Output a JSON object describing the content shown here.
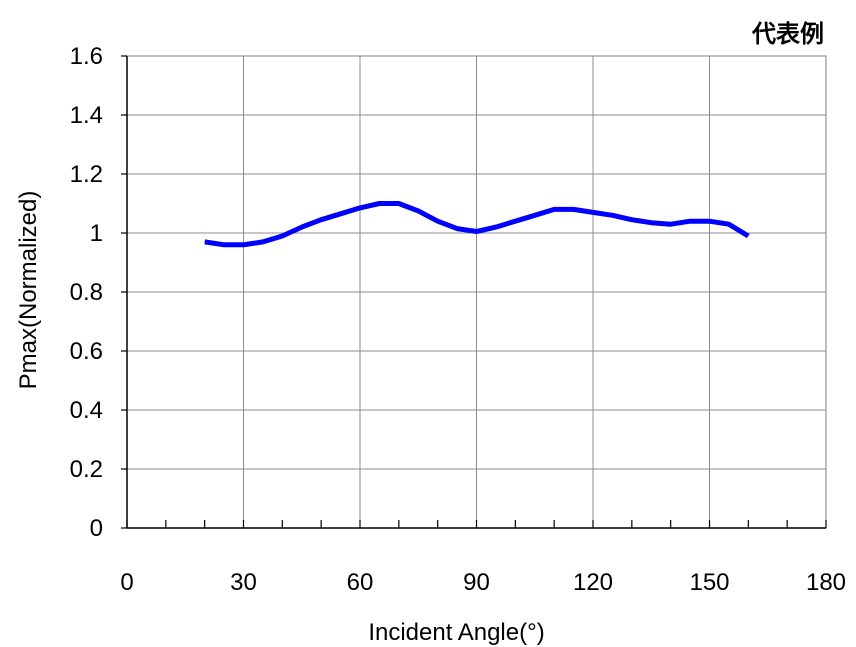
{
  "chart_data": {
    "type": "line",
    "note": "代表例",
    "xlabel": "Incident Angle(°)",
    "ylabel": "Pmax(Normalized)",
    "xlim": [
      0,
      180
    ],
    "ylim": [
      0,
      1.6
    ],
    "x_ticks": [
      0,
      30,
      60,
      90,
      120,
      150,
      180
    ],
    "x_minor_step": 10,
    "y_ticks": [
      "0",
      "0.2",
      "0.4",
      "0.6",
      "0.8",
      "1",
      "1.2",
      "1.4",
      "1.6"
    ],
    "grid": true,
    "series": [
      {
        "color": "#0000ff",
        "x": [
          20,
          25,
          30,
          35,
          40,
          45,
          50,
          55,
          60,
          65,
          70,
          75,
          80,
          85,
          90,
          95,
          100,
          105,
          110,
          115,
          120,
          125,
          130,
          135,
          140,
          145,
          150,
          155,
          160
        ],
        "y": [
          0.97,
          0.96,
          0.96,
          0.97,
          0.99,
          1.02,
          1.045,
          1.065,
          1.085,
          1.1,
          1.1,
          1.075,
          1.04,
          1.015,
          1.005,
          1.02,
          1.04,
          1.06,
          1.08,
          1.08,
          1.07,
          1.06,
          1.045,
          1.035,
          1.03,
          1.04,
          1.04,
          1.03,
          0.99
        ]
      }
    ]
  }
}
